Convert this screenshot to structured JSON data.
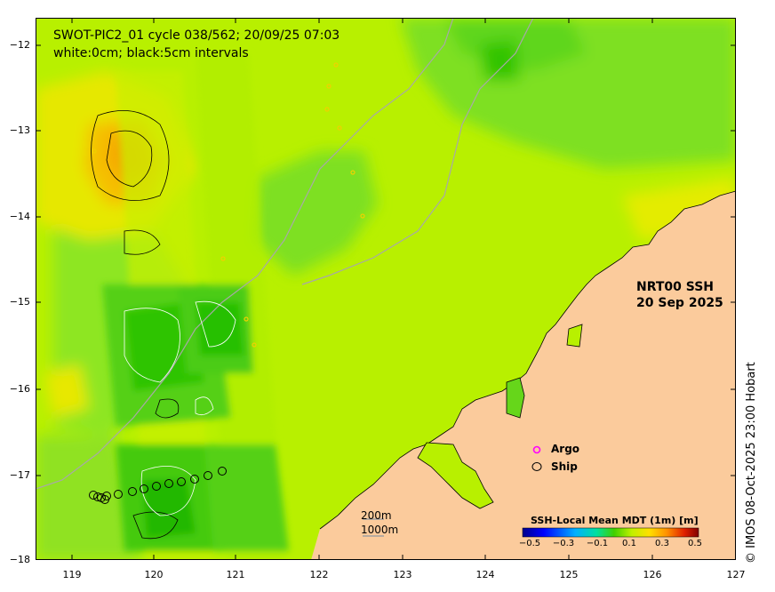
{
  "title": {
    "line1": "SWOT-PIC2_01 cycle 038/562; 20/09/25 07:03",
    "line2": "white:0cm; black:5cm intervals"
  },
  "product": {
    "line1": "NRT00 SSH",
    "line2": "20 Sep 2025"
  },
  "legend": {
    "argo": "Argo",
    "ship": "Ship",
    "argo_color": "#ff00ff",
    "ship_color": "#000000"
  },
  "bathymetry": {
    "contour_200": "200m",
    "contour_1000": "1000m"
  },
  "colorbar": {
    "title": "SSH-Local Mean MDT (1m) [m]",
    "ticks": [
      "−0.5",
      "−0.3",
      "−0.1",
      "0.1",
      "0.3",
      "0.5"
    ],
    "colors": [
      "#00008c",
      "#0000ff",
      "#00a0ff",
      "#00e0c0",
      "#00c800",
      "#80e000",
      "#c8f000",
      "#ffe000",
      "#ffa000",
      "#ff5000",
      "#c80000",
      "#800000"
    ]
  },
  "axes": {
    "y_ticks": [
      "−12",
      "−13",
      "−14",
      "−15",
      "−16",
      "−17",
      "−18"
    ],
    "x_ticks": [
      "119",
      "120",
      "121",
      "122",
      "123",
      "124",
      "125",
      "126",
      "127"
    ]
  },
  "credit": "© IMOS 08-Oct-2025 23:00 Hobart",
  "colors": {
    "land": "#fbcb9c",
    "ocean_base": "#b8f000",
    "ocean_green": "#66d61a",
    "ocean_dark": "#22c000",
    "warm": "#f5b400"
  }
}
